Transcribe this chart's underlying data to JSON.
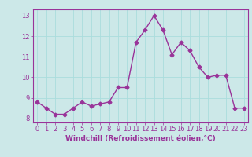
{
  "x": [
    0,
    1,
    2,
    3,
    4,
    5,
    6,
    7,
    8,
    9,
    10,
    11,
    12,
    13,
    14,
    15,
    16,
    17,
    18,
    19,
    20,
    21,
    22,
    23
  ],
  "y": [
    8.8,
    8.5,
    8.2,
    8.2,
    8.5,
    8.8,
    8.6,
    8.7,
    8.8,
    9.5,
    9.5,
    11.7,
    12.3,
    13.0,
    12.3,
    11.1,
    11.7,
    11.3,
    10.5,
    10.0,
    10.1,
    10.1,
    8.5,
    8.5
  ],
  "line_color": "#993399",
  "marker": "D",
  "markersize": 2.5,
  "linewidth": 1.0,
  "xlim": [
    -0.5,
    23.5
  ],
  "ylim": [
    7.8,
    13.3
  ],
  "yticks": [
    8,
    9,
    10,
    11,
    12,
    13
  ],
  "xticks": [
    0,
    1,
    2,
    3,
    4,
    5,
    6,
    7,
    8,
    9,
    10,
    11,
    12,
    13,
    14,
    15,
    16,
    17,
    18,
    19,
    20,
    21,
    22,
    23
  ],
  "xlabel": "Windchill (Refroidissement éolien,°C)",
  "xlabel_fontsize": 6.5,
  "tick_fontsize": 6.0,
  "grid_color": "#aadddd",
  "background_color": "#cce8e8",
  "fig_background": "#cce8e8"
}
